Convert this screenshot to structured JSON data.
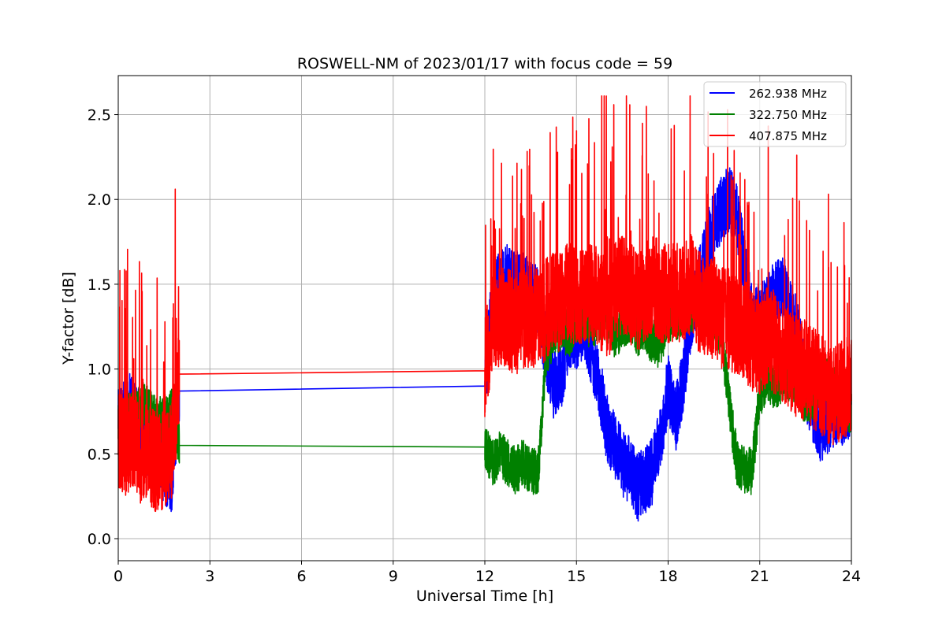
{
  "chart_data": {
    "type": "line",
    "title": "ROSWELL-NM of 2023/01/17 with focus code = 59",
    "xlabel": "Universal Time [h]",
    "ylabel": "Y-factor [dB]",
    "xlim": [
      0,
      24
    ],
    "ylim": [
      -0.13,
      2.73
    ],
    "xticks": [
      0,
      3,
      6,
      9,
      12,
      15,
      18,
      21,
      24
    ],
    "yticks": [
      0.0,
      0.5,
      1.0,
      1.5,
      2.0,
      2.5
    ],
    "xtick_labels": [
      "0",
      "3",
      "6",
      "9",
      "12",
      "15",
      "18",
      "21",
      "24"
    ],
    "ytick_labels": [
      "0.0",
      "0.5",
      "1.0",
      "1.5",
      "2.0",
      "2.5"
    ],
    "grid": true,
    "legend_position": "top-right",
    "series": [
      {
        "name": "262.938 MHz",
        "color": "#0000ff",
        "x": [
          0,
          0.25,
          0.5,
          0.75,
          1.0,
          1.25,
          1.5,
          1.75,
          2.0,
          12.0,
          12.25,
          12.5,
          12.75,
          13.0,
          13.25,
          13.5,
          13.75,
          14.0,
          14.25,
          14.5,
          14.75,
          15.0,
          15.25,
          15.5,
          15.75,
          16.0,
          16.25,
          16.5,
          16.75,
          17.0,
          17.25,
          17.5,
          17.75,
          18.0,
          18.25,
          18.5,
          18.75,
          19.0,
          19.25,
          19.5,
          19.75,
          20.0,
          20.25,
          20.5,
          20.75,
          21.0,
          21.25,
          21.5,
          21.75,
          22.0,
          22.25,
          22.5,
          22.75,
          23.0,
          23.25,
          23.5,
          23.75,
          24.0
        ],
        "values": [
          0.75,
          0.8,
          0.75,
          0.65,
          0.55,
          0.5,
          0.4,
          0.35,
          0.87,
          0.9,
          1.45,
          1.5,
          1.55,
          1.5,
          1.5,
          1.45,
          1.4,
          1.1,
          0.9,
          0.95,
          1.2,
          1.2,
          1.25,
          1.1,
          0.9,
          0.65,
          0.55,
          0.45,
          0.4,
          0.3,
          0.35,
          0.4,
          0.6,
          0.9,
          0.7,
          0.95,
          1.3,
          1.5,
          1.7,
          1.85,
          1.95,
          2.0,
          1.9,
          1.6,
          1.3,
          1.3,
          1.35,
          1.45,
          1.5,
          1.35,
          1.2,
          0.9,
          0.75,
          0.65,
          0.7,
          0.75,
          0.75,
          0.8
        ],
        "noise": 0.2
      },
      {
        "name": "322.750 MHz",
        "color": "#008000",
        "x": [
          0,
          0.25,
          0.5,
          0.75,
          1.0,
          1.25,
          1.5,
          1.75,
          2.0,
          12.0,
          12.25,
          12.5,
          12.75,
          13.0,
          13.25,
          13.5,
          13.75,
          14.0,
          14.25,
          14.5,
          14.75,
          15.0,
          15.25,
          15.5,
          15.75,
          16.0,
          16.25,
          16.5,
          16.75,
          17.0,
          17.25,
          17.5,
          17.75,
          18.0,
          18.25,
          18.5,
          18.75,
          19.0,
          19.25,
          19.5,
          19.75,
          20.0,
          20.25,
          20.5,
          20.75,
          21.0,
          21.25,
          21.5,
          21.75,
          22.0,
          22.25,
          22.5,
          22.75,
          23.0,
          23.25,
          23.5,
          23.75,
          24.0
        ],
        "values": [
          0.65,
          0.7,
          0.75,
          0.8,
          0.75,
          0.7,
          0.7,
          0.75,
          0.55,
          0.54,
          0.45,
          0.5,
          0.45,
          0.4,
          0.45,
          0.4,
          0.4,
          1.1,
          1.2,
          1.25,
          1.2,
          1.3,
          1.3,
          1.25,
          1.3,
          1.3,
          1.2,
          1.25,
          1.3,
          1.2,
          1.25,
          1.15,
          1.15,
          1.3,
          1.3,
          1.35,
          1.35,
          1.4,
          1.35,
          1.3,
          1.2,
          0.8,
          0.45,
          0.4,
          0.4,
          0.85,
          0.95,
          0.9,
          0.95,
          0.95,
          0.9,
          0.8,
          0.85,
          0.9,
          0.95,
          0.85,
          0.8,
          0.75
        ],
        "noise": 0.14
      },
      {
        "name": "407.875 MHz",
        "color": "#ff0000",
        "x": [
          0,
          0.25,
          0.5,
          0.75,
          1.0,
          1.25,
          1.5,
          1.75,
          2.0,
          12.0,
          12.25,
          12.5,
          12.75,
          13.0,
          13.25,
          13.5,
          13.75,
          14.0,
          14.25,
          14.5,
          14.75,
          15.0,
          15.25,
          15.5,
          15.75,
          16.0,
          16.25,
          16.5,
          16.75,
          17.0,
          17.25,
          17.5,
          17.75,
          18.0,
          18.25,
          18.5,
          18.75,
          19.0,
          19.25,
          19.5,
          19.75,
          20.0,
          20.25,
          20.5,
          20.75,
          21.0,
          21.25,
          21.5,
          21.75,
          22.0,
          22.25,
          22.5,
          22.75,
          23.0,
          23.25,
          23.5,
          23.75,
          24.0
        ],
        "values": [
          0.6,
          0.55,
          0.6,
          0.5,
          0.5,
          0.45,
          0.45,
          0.5,
          0.97,
          0.99,
          1.3,
          1.3,
          1.3,
          1.25,
          1.3,
          1.3,
          1.3,
          1.35,
          1.4,
          1.4,
          1.45,
          1.4,
          1.45,
          1.45,
          1.4,
          1.35,
          1.45,
          1.5,
          1.45,
          1.4,
          1.45,
          1.5,
          1.45,
          1.45,
          1.45,
          1.45,
          1.5,
          1.4,
          1.35,
          1.35,
          1.3,
          1.3,
          1.25,
          1.25,
          1.15,
          1.15,
          1.2,
          1.15,
          1.1,
          1.05,
          1.0,
          1.0,
          0.95,
          0.9,
          0.85,
          0.85,
          0.9,
          0.9
        ],
        "noise": 0.3
      }
    ],
    "gaps": [
      [
        2.0,
        12.0
      ]
    ]
  }
}
